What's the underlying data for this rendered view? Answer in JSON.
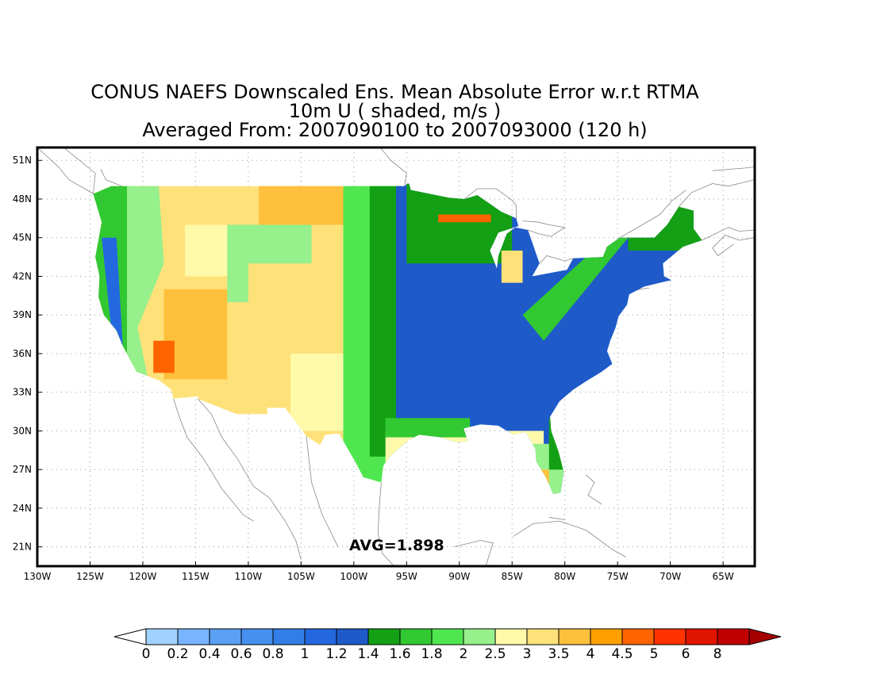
{
  "title": {
    "line1": "CONUS NAEFS Downscaled Ens. Mean Absolute Error w.r.t RTMA",
    "line2": "10m U ( shaded, m/s )",
    "line3": "Averaged From: 2007090100 to 2007093000 (120 h)"
  },
  "map": {
    "lon_ticks": [
      "130W",
      "125W",
      "120W",
      "115W",
      "110W",
      "105W",
      "100W",
      "95W",
      "90W",
      "85W",
      "80W",
      "75W",
      "70W",
      "65W"
    ],
    "lat_ticks": [
      "51N",
      "48N",
      "45N",
      "42N",
      "39N",
      "36N",
      "33N",
      "30N",
      "27N",
      "24N",
      "21N"
    ],
    "lon_range": [
      -130,
      -62
    ],
    "lat_range": [
      19.5,
      52
    ],
    "gridlines": true,
    "annotation": "AVG=1.898",
    "regions": [
      {
        "name": "pacific-coast",
        "value_class": "green-2"
      },
      {
        "name": "great-basin",
        "value_class": "orange"
      },
      {
        "name": "great-plains",
        "value_class": "green"
      },
      {
        "name": "midwest-south-east",
        "value_class": "blue"
      },
      {
        "name": "gulf-coast",
        "value_class": "yellow"
      }
    ]
  },
  "colorbar": {
    "labels": [
      "0",
      "0.2",
      "0.4",
      "0.6",
      "0.8",
      "1",
      "1.2",
      "1.4",
      "1.6",
      "1.8",
      "2",
      "2.5",
      "3",
      "3.5",
      "4",
      "4.5",
      "5",
      "6",
      "8"
    ],
    "colors": [
      "#a0d2ff",
      "#78b4ff",
      "#5aa0f5",
      "#4690f0",
      "#327ee6",
      "#2468e0",
      "#1e5ac8",
      "#14a014",
      "#32c832",
      "#50e650",
      "#96f08c",
      "#fffaaa",
      "#ffe17a",
      "#ffc03c",
      "#ffa000",
      "#ff6400",
      "#ff3200",
      "#e11400",
      "#c00000"
    ],
    "low_extension": "#ffffff",
    "high_extension": "#a50000"
  }
}
